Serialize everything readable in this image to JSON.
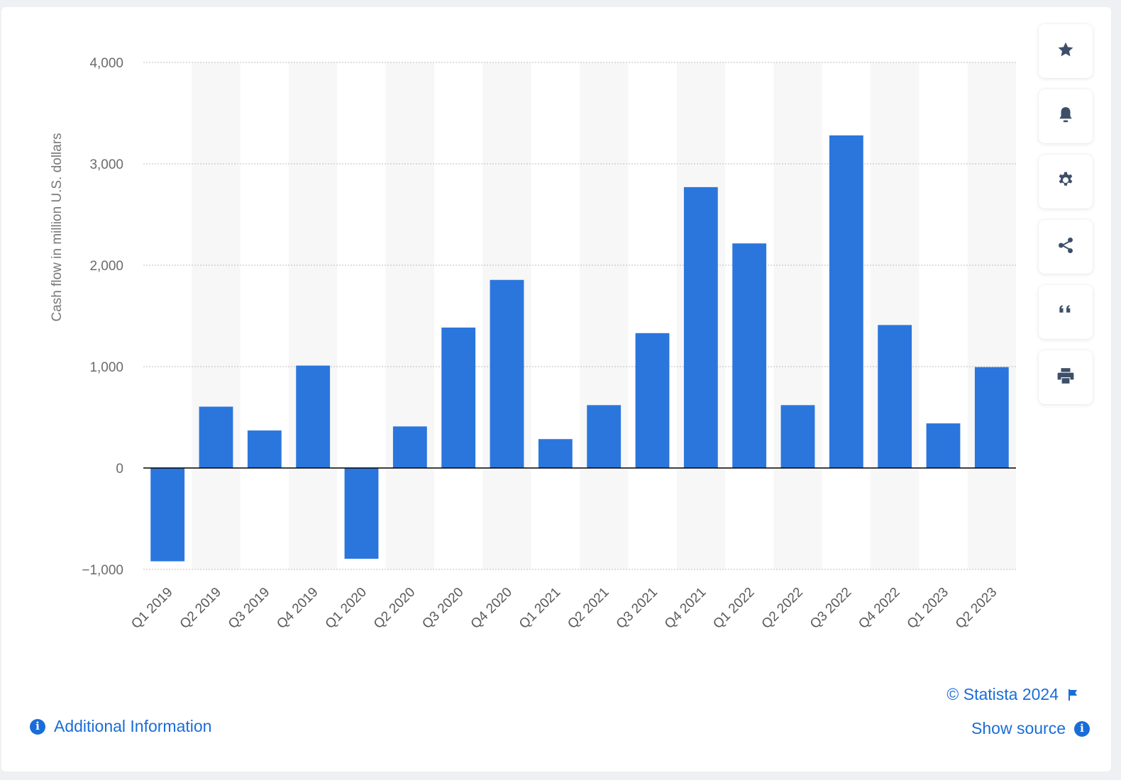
{
  "chart_data": {
    "type": "bar",
    "categories": [
      "Q1 2019",
      "Q2 2019",
      "Q3 2019",
      "Q4 2019",
      "Q1 2020",
      "Q2 2020",
      "Q3 2020",
      "Q4 2020",
      "Q1 2021",
      "Q2 2021",
      "Q3 2021",
      "Q4 2021",
      "Q1 2022",
      "Q2 2022",
      "Q3 2022",
      "Q4 2022",
      "Q1 2023",
      "Q2 2023"
    ],
    "values": [
      -920,
      605,
      370,
      1010,
      -895,
      410,
      1385,
      1855,
      285,
      620,
      1330,
      2770,
      2215,
      620,
      3280,
      1410,
      440,
      995
    ],
    "ylabel": "Cash flow in million U.S. dollars",
    "xlabel": "",
    "ylim": [
      -1000,
      4000
    ],
    "yticks": [
      -1000,
      0,
      1000,
      2000,
      3000,
      4000
    ],
    "ytick_labels": [
      "−1,000",
      "0",
      "1,000",
      "2,000",
      "3,000",
      "4,000"
    ],
    "grid": true,
    "bar_color": "#2a76dd",
    "band_color": "#f7f7f7"
  },
  "toolbar": {
    "buttons": [
      {
        "name": "favorite-button",
        "icon": "star-icon"
      },
      {
        "name": "notification-button",
        "icon": "bell-icon"
      },
      {
        "name": "settings-button",
        "icon": "gear-icon"
      },
      {
        "name": "share-button",
        "icon": "share-icon"
      },
      {
        "name": "cite-button",
        "icon": "quote-icon"
      },
      {
        "name": "print-button",
        "icon": "printer-icon"
      }
    ]
  },
  "footer": {
    "credit": "© Statista 2024",
    "show_source": "Show source",
    "additional_info": "Additional Information"
  },
  "colors": {
    "accent": "#1a6dd8",
    "icon": "#3d4f68"
  }
}
